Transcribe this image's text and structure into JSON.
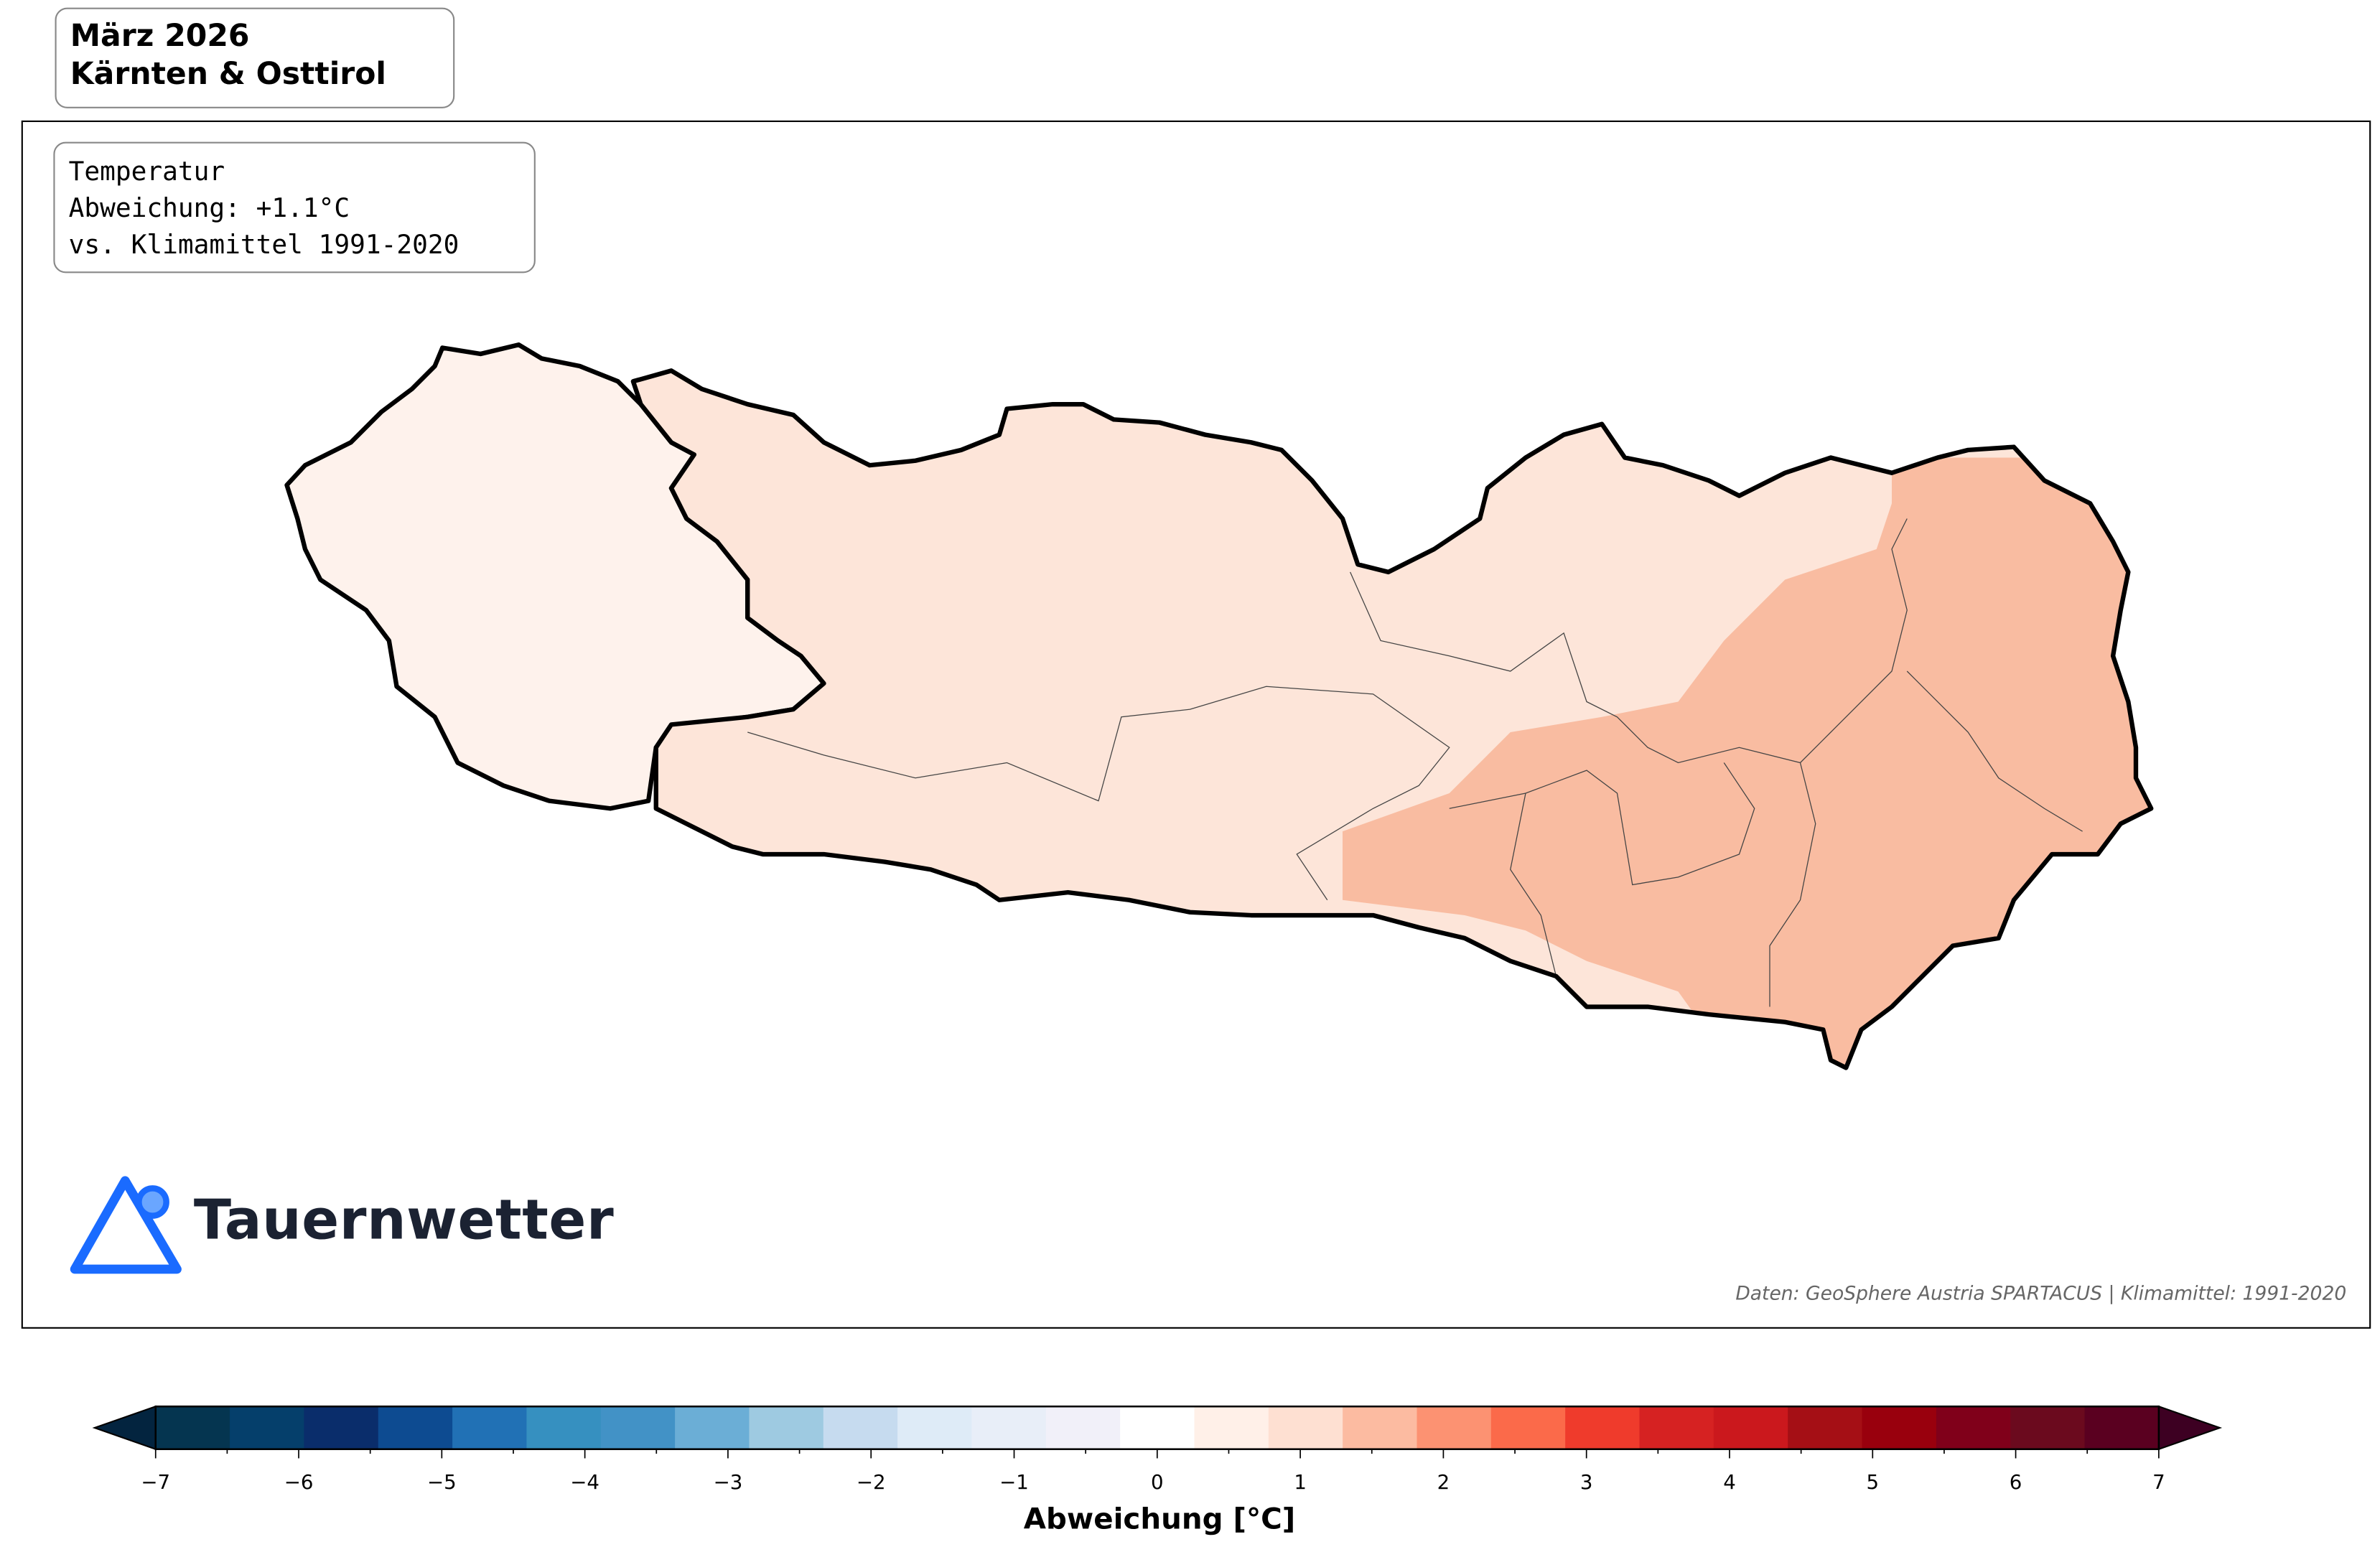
{
  "title": {
    "line1": "März 2026",
    "line2": "Kärnten & Osttirol"
  },
  "info": {
    "line1": "Temperatur",
    "line2": "Abweichung: +1.1°C",
    "line3": "vs. Klimamittel 1991-2020"
  },
  "logo": {
    "text": "Tauernwetter",
    "icon": "mountain-triangle-icon",
    "color": "#1a6bff"
  },
  "credit": "Daten: GeoSphere Austria SPARTACUS | Klimamittel: 1991-2020",
  "map_fill": {
    "osttirol": "#fef2ec",
    "kaernten_west": "#fde5d9",
    "kaernten_east": "#f9bca1"
  },
  "colorbar": {
    "label": "Abweichung [°C]",
    "min": -7,
    "max": 7,
    "ticks": [
      -7,
      -6,
      -5,
      -4,
      -3,
      -2,
      -1,
      0,
      1,
      2,
      3,
      4,
      5,
      6,
      7
    ],
    "tick_labels": [
      "−7",
      "−6",
      "−5",
      "−4",
      "−3",
      "−2",
      "−1",
      "0",
      "1",
      "2",
      "3",
      "4",
      "5",
      "6",
      "7"
    ],
    "extend_min_color": "#03243f",
    "extend_max_color": "#3d0022",
    "colors": [
      "#053550",
      "#053f6b",
      "#0a2d6b",
      "#0d4b91",
      "#2171b5",
      "#3690c0",
      "#4292c6",
      "#6baed6",
      "#9ecae1",
      "#c6dbef",
      "#deebf7",
      "#e8eef8",
      "#f1f0f9",
      "#ffffff",
      "#fff0e8",
      "#fee0d2",
      "#fcbba1",
      "#fc9272",
      "#fb6a4a",
      "#ef3b2c",
      "#d62222",
      "#cb181d",
      "#a50f15",
      "#99000d",
      "#80001a",
      "#6b0a1e",
      "#5a0020"
    ]
  }
}
